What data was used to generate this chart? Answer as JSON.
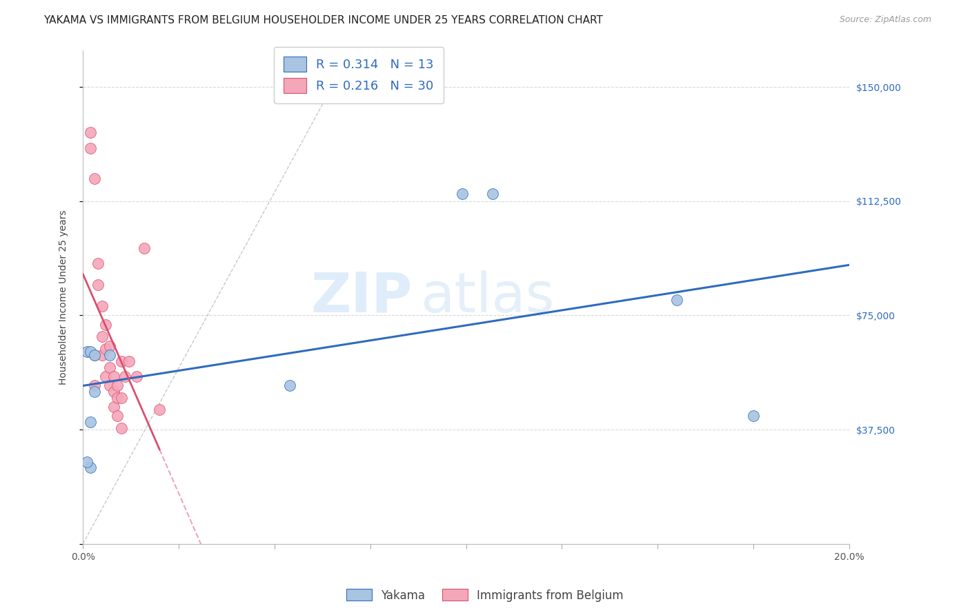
{
  "title": "YAKAMA VS IMMIGRANTS FROM BELGIUM HOUSEHOLDER INCOME UNDER 25 YEARS CORRELATION CHART",
  "source": "Source: ZipAtlas.com",
  "ylabel_text": "Householder Income Under 25 years",
  "watermark_part1": "ZIP",
  "watermark_part2": "atlas",
  "xlim": [
    0.0,
    0.2
  ],
  "ylim": [
    0,
    162000
  ],
  "xtick_vals": [
    0.0,
    0.025,
    0.05,
    0.075,
    0.1,
    0.125,
    0.15,
    0.175,
    0.2
  ],
  "xtick_labels": [
    "0.0%",
    "",
    "",
    "",
    "",
    "",
    "",
    "",
    "20.0%"
  ],
  "ytick_vals": [
    0,
    37500,
    75000,
    112500,
    150000
  ],
  "ytick_labels": [
    "",
    "$37,500",
    "$75,000",
    "$112,500",
    "$150,000"
  ],
  "yakama_color": "#a8c4e0",
  "belgium_color": "#f4a7b9",
  "trendline_yakama_color": "#2f6bbf",
  "trendline_belgium_color": "#d94f6e",
  "R_yakama": 0.314,
  "N_yakama": 13,
  "R_belgium": 0.216,
  "N_belgium": 30,
  "yakama_x": [
    0.001,
    0.002,
    0.002,
    0.003,
    0.007,
    0.054,
    0.099,
    0.107,
    0.155,
    0.175,
    0.003,
    0.002,
    0.001
  ],
  "yakama_y": [
    63000,
    63000,
    25000,
    62000,
    62000,
    52000,
    115000,
    115000,
    80000,
    42000,
    50000,
    40000,
    27000
  ],
  "belgium_x": [
    0.002,
    0.002,
    0.003,
    0.003,
    0.003,
    0.004,
    0.004,
    0.005,
    0.005,
    0.005,
    0.006,
    0.006,
    0.006,
    0.007,
    0.007,
    0.007,
    0.008,
    0.008,
    0.008,
    0.009,
    0.009,
    0.009,
    0.01,
    0.01,
    0.01,
    0.011,
    0.012,
    0.014,
    0.016,
    0.02
  ],
  "belgium_y": [
    135000,
    130000,
    120000,
    62000,
    52000,
    92000,
    85000,
    78000,
    68000,
    62000,
    72000,
    64000,
    55000,
    65000,
    58000,
    52000,
    55000,
    50000,
    45000,
    52000,
    48000,
    42000,
    60000,
    48000,
    38000,
    55000,
    60000,
    55000,
    97000,
    44000
  ],
  "background_color": "#ffffff",
  "grid_color": "#d8d8d8",
  "title_fontsize": 11,
  "axis_label_fontsize": 10,
  "tick_fontsize": 10,
  "ytick_color": "#2f6bbf",
  "marker_size": 130
}
